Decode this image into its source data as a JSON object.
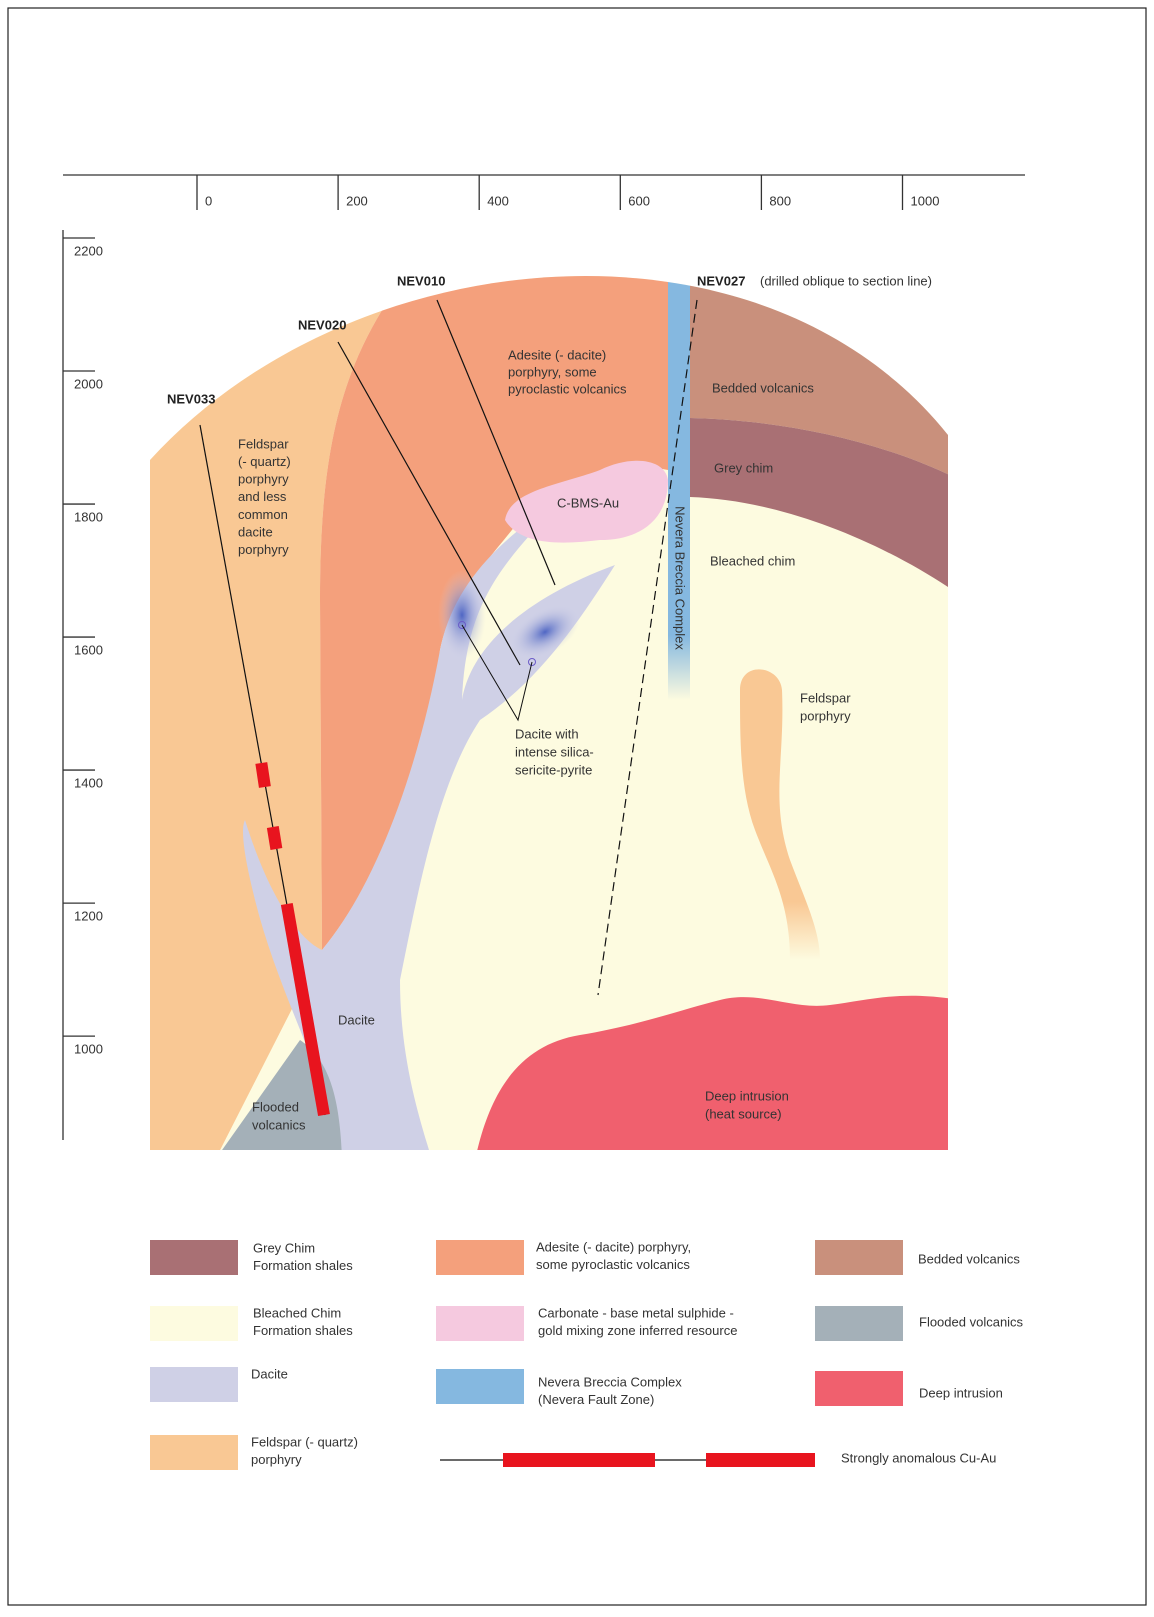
{
  "axes": {
    "x_ticks": [
      0,
      200,
      400,
      600,
      800,
      1000
    ],
    "y_ticks": [
      2200,
      2000,
      1800,
      1600,
      1400,
      1200,
      1000
    ]
  },
  "drill_holes": [
    {
      "label": "NEV033"
    },
    {
      "label": "NEV020"
    },
    {
      "label": "NEV010"
    },
    {
      "label": "NEV027",
      "note": "(drilled oblique to section line)"
    }
  ],
  "units": {
    "feldspar_left": [
      "Feldspar",
      "(- quartz)",
      "porphyry",
      "and less",
      "common",
      "dacite",
      "porphyry"
    ],
    "adesite": [
      "Adesite (- dacite)",
      "porphyry, some",
      "pyroclastic volcanics"
    ],
    "bedded": "Bedded volcanics",
    "grey_chim": "Grey chim",
    "cbms": "C-BMS-Au",
    "bleached": "Bleached chim",
    "nevera": "Nevera Breccia Complex",
    "feldspar_right": [
      "Feldspar",
      "porphyry"
    ],
    "dacite_altered": [
      "Dacite with",
      "intense silica-",
      "sericite-pyrite"
    ],
    "dacite": "Dacite",
    "flooded": [
      "Flooded",
      "volcanics"
    ],
    "deep": [
      "Deep intrusion",
      "(heat source)"
    ]
  },
  "legend": [
    {
      "label": [
        "Grey Chim",
        "Formation shales"
      ]
    },
    {
      "label": [
        "Adesite (- dacite) porphyry,",
        "some pyroclastic volcanics"
      ]
    },
    {
      "label": [
        "Bedded volcanics"
      ]
    },
    {
      "label": [
        "Bleached Chim",
        "Formation shales"
      ]
    },
    {
      "label": [
        "Carbonate - base metal sulphide -",
        "gold mixing zone inferred resource"
      ]
    },
    {
      "label": [
        "Flooded volcanics"
      ]
    },
    {
      "label": [
        "Dacite"
      ]
    },
    {
      "label": [
        "Nevera Breccia Complex",
        "(Nevera Fault Zone)"
      ]
    },
    {
      "label": [
        "Deep intrusion"
      ]
    },
    {
      "label": [
        "Feldspar (- quartz)",
        "porphyry"
      ]
    },
    {
      "label": [
        "Strongly anomalous Cu-Au"
      ]
    }
  ]
}
